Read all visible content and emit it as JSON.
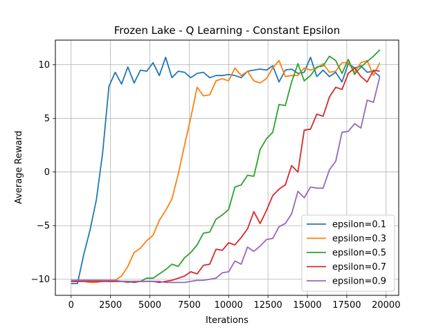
{
  "chart_data": {
    "type": "line",
    "title": "Frozen Lake - Q Learning - Constant Epsilon",
    "xlabel": "Iterations",
    "ylabel": "Average Reward",
    "xlim": [
      -1000,
      20800
    ],
    "ylim": [
      -11.5,
      12.3
    ],
    "xticks": [
      0,
      2500,
      5000,
      7500,
      10000,
      12500,
      15000,
      17500,
      20000
    ],
    "yticks": [
      -10,
      -5,
      0,
      5,
      10
    ],
    "grid": true,
    "legend_position": "lower-right",
    "x": [
      0,
      400,
      800,
      1200,
      1600,
      2000,
      2400,
      2800,
      3200,
      3600,
      4000,
      4400,
      4800,
      5200,
      5600,
      6000,
      6400,
      6800,
      7200,
      7600,
      8000,
      8400,
      8800,
      9200,
      9600,
      10000,
      10400,
      10800,
      11200,
      11600,
      12000,
      12400,
      12800,
      13200,
      13600,
      14000,
      14400,
      14800,
      15200,
      15600,
      16000,
      16400,
      16800,
      17200,
      17600,
      18000,
      18400,
      18800,
      19200,
      19600
    ],
    "series": [
      {
        "name": "epsilon=0.1",
        "color": "#1f77b4",
        "values": [
          -10.4,
          -10.4,
          -7.7,
          -5.4,
          -2.6,
          1.8,
          8.0,
          9.3,
          8.2,
          9.8,
          8.3,
          9.5,
          9.4,
          10.2,
          9.0,
          10.7,
          8.8,
          9.4,
          9.3,
          8.8,
          9.2,
          9.3,
          8.8,
          9.0,
          9.0,
          9.1,
          9.0,
          8.8,
          9.4,
          9.5,
          9.6,
          9.5,
          9.9,
          8.4,
          9.5,
          9.6,
          9.2,
          9.3,
          10.7,
          8.9,
          9.5,
          8.9,
          9.3,
          8.4,
          10.1,
          9.7,
          9.9,
          9.3,
          9.4,
          8.9
        ]
      },
      {
        "name": "epsilon=0.3",
        "color": "#ff7f0e",
        "values": [
          -10.2,
          -10.2,
          -10.2,
          -10.3,
          -10.3,
          -10.2,
          -10.1,
          -10.1,
          -9.7,
          -8.8,
          -7.5,
          -7.1,
          -6.4,
          -5.9,
          -4.5,
          -3.6,
          -2.5,
          -0.2,
          2.5,
          5.1,
          7.9,
          7.1,
          7.2,
          8.5,
          8.7,
          8.5,
          9.7,
          9.0,
          9.4,
          8.5,
          8.3,
          8.7,
          9.7,
          10.4,
          8.9,
          9.0,
          9.0,
          9.7,
          9.5,
          9.7,
          10.1,
          9.3,
          9.4,
          10.2,
          10.2,
          9.3,
          10.2,
          10.4,
          9.0,
          10.2
        ]
      },
      {
        "name": "epsilon=0.5",
        "color": "#2ca02c",
        "values": [
          -10.1,
          -10.1,
          -10.1,
          -10.1,
          -10.1,
          -10.1,
          -10.2,
          -10.2,
          -10.2,
          -10.3,
          -10.2,
          -10.2,
          -9.9,
          -9.9,
          -9.5,
          -9.1,
          -8.6,
          -8.8,
          -8.0,
          -7.5,
          -6.8,
          -5.7,
          -5.6,
          -4.4,
          -4.0,
          -3.5,
          -1.4,
          -1.2,
          -0.3,
          -0.4,
          2.1,
          3.1,
          3.7,
          6.3,
          6.2,
          8.4,
          10.1,
          8.5,
          9.0,
          9.8,
          9.9,
          10.8,
          10.4,
          9.2,
          10.5,
          9.1,
          9.8,
          10.3,
          10.8,
          11.4
        ]
      },
      {
        "name": "epsilon=0.7",
        "color": "#d62728",
        "values": [
          -10.2,
          -10.2,
          -10.2,
          -10.2,
          -10.2,
          -10.2,
          -10.2,
          -10.2,
          -10.2,
          -10.2,
          -10.3,
          -10.2,
          -10.2,
          -10.2,
          -10.3,
          -10.2,
          -10.1,
          -9.9,
          -9.7,
          -9.3,
          -9.5,
          -8.7,
          -8.6,
          -7.2,
          -7.3,
          -6.6,
          -6.8,
          -6.1,
          -5.3,
          -3.7,
          -4.8,
          -3.6,
          -2.2,
          -1.6,
          -1.2,
          0.6,
          0.0,
          3.9,
          4.0,
          5.4,
          5.2,
          7.0,
          7.9,
          7.7,
          9.2,
          9.7,
          8.9,
          8.4,
          9.5,
          9.4
        ]
      },
      {
        "name": "epsilon=0.9",
        "color": "#9467bd",
        "values": [
          -10.1,
          -10.1,
          -10.1,
          -10.1,
          -10.1,
          -10.1,
          -10.1,
          -10.1,
          -10.2,
          -10.2,
          -10.2,
          -10.2,
          -10.2,
          -10.2,
          -10.2,
          -10.3,
          -10.3,
          -10.3,
          -10.3,
          -10.2,
          -10.1,
          -10.1,
          -10.0,
          -9.9,
          -9.4,
          -9.3,
          -8.3,
          -8.6,
          -7.0,
          -7.4,
          -6.9,
          -6.3,
          -6.2,
          -5.1,
          -4.8,
          -3.9,
          -1.8,
          -2.4,
          -1.4,
          -1.5,
          -1.5,
          0.2,
          1.0,
          3.7,
          3.8,
          4.5,
          4.1,
          6.7,
          6.5,
          8.9
        ]
      }
    ]
  }
}
